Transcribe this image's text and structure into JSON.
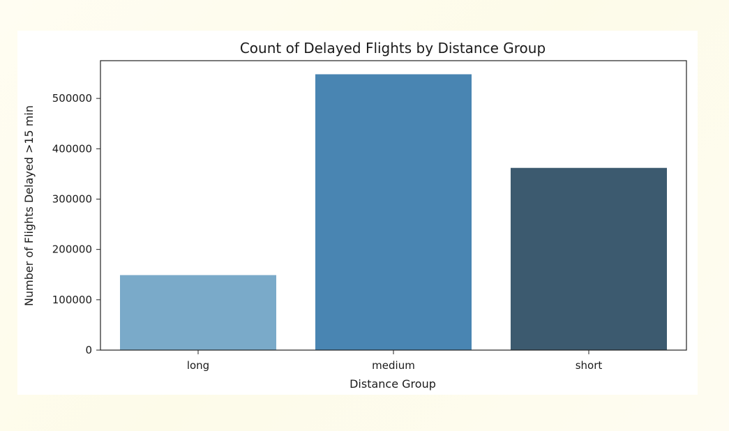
{
  "chart_data": {
    "type": "bar",
    "title": "Count of Delayed Flights by Distance Group",
    "xlabel": "Distance Group",
    "ylabel": "Number of Flights Delayed >15 min",
    "categories": [
      "long",
      "medium",
      "short"
    ],
    "values": [
      149000,
      548000,
      362000
    ],
    "colors": [
      "#7aaac9",
      "#4985b2",
      "#3c5a6f"
    ],
    "ylim": [
      0,
      575000
    ],
    "yticks": [
      0,
      100000,
      200000,
      300000,
      400000,
      500000
    ],
    "ytick_labels": [
      "0",
      "100000",
      "200000",
      "300000",
      "400000",
      "500000"
    ],
    "grid": false,
    "legend": false
  }
}
